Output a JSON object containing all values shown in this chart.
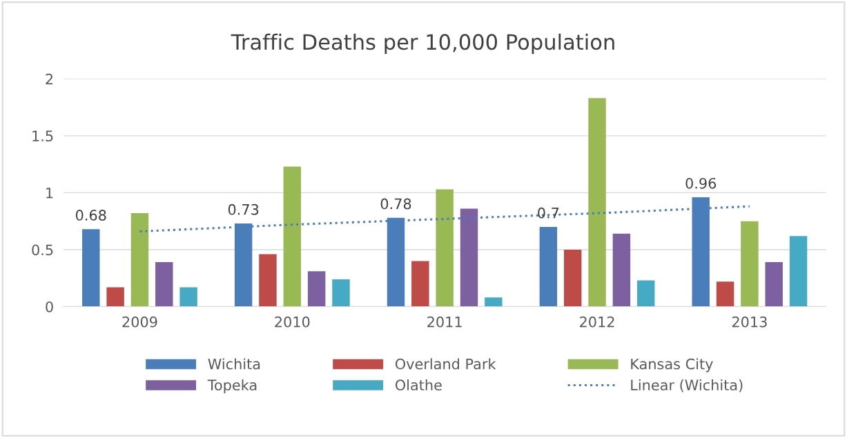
{
  "chart_data": {
    "type": "bar",
    "title": "Traffic Deaths per 10,000 Population",
    "categories": [
      "2009",
      "2010",
      "2011",
      "2012",
      "2013"
    ],
    "series": [
      {
        "name": "Wichita",
        "color": "#4a7ebb",
        "values": [
          0.68,
          0.73,
          0.78,
          0.7,
          0.96
        ],
        "value_labels": [
          "0.68",
          "0.73",
          "0.78",
          "0.7",
          "0.96"
        ]
      },
      {
        "name": "Overland Park",
        "color": "#be4b48",
        "values": [
          0.17,
          0.46,
          0.4,
          0.5,
          0.22
        ]
      },
      {
        "name": "Kansas City",
        "color": "#98b954",
        "values": [
          0.82,
          1.23,
          1.03,
          1.83,
          0.75
        ]
      },
      {
        "name": "Topeka",
        "color": "#7d60a0",
        "values": [
          0.39,
          0.31,
          0.86,
          0.64,
          0.39
        ]
      },
      {
        "name": "Olathe",
        "color": "#46aac5",
        "values": [
          0.17,
          0.24,
          0.08,
          0.23,
          0.62
        ]
      },
      {
        "name": "Linear (Wichita)",
        "type": "line",
        "color": "#4a7ebb",
        "line_style": "dotted",
        "values": [
          0.66,
          0.72,
          0.77,
          0.82,
          0.88
        ]
      }
    ],
    "ylim": [
      0,
      2
    ],
    "yticks": [
      0,
      0.5,
      1,
      1.5,
      2
    ],
    "grid": "y",
    "legend": "bottom"
  }
}
